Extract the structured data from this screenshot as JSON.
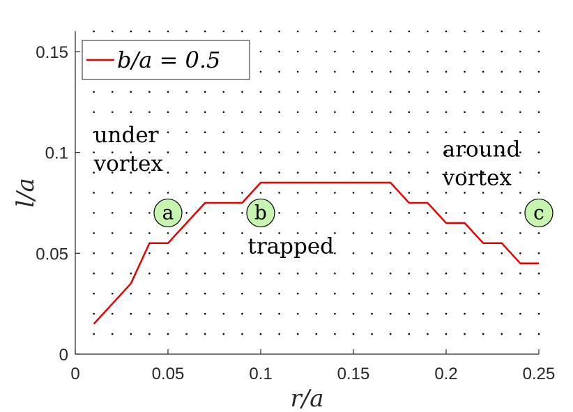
{
  "chart_data": {
    "type": "line",
    "xlabel": "r/a",
    "ylabel": "l/a",
    "xlim": [
      0,
      0.25
    ],
    "ylim": [
      0,
      0.16
    ],
    "xticks": [
      0,
      0.05,
      0.1,
      0.15,
      0.2,
      0.25
    ],
    "xtick_labels": [
      "0",
      "0.05",
      "0.1",
      "0.15",
      "0.2",
      "0.25"
    ],
    "yticks": [
      0,
      0.05,
      0.1,
      0.15
    ],
    "ytick_labels": [
      "0",
      "0.05",
      "0.1",
      "0.15"
    ],
    "grid": false,
    "legend_position": "top-left",
    "series": [
      {
        "name": "b/a = 0.5",
        "color": "#e60000",
        "x": [
          0.01,
          0.02,
          0.03,
          0.04,
          0.05,
          0.06,
          0.07,
          0.08,
          0.09,
          0.1,
          0.11,
          0.12,
          0.13,
          0.14,
          0.15,
          0.16,
          0.17,
          0.18,
          0.19,
          0.2,
          0.21,
          0.22,
          0.23,
          0.24,
          0.25
        ],
        "y": [
          0.015,
          0.025,
          0.035,
          0.055,
          0.055,
          0.065,
          0.075,
          0.075,
          0.075,
          0.085,
          0.085,
          0.085,
          0.085,
          0.085,
          0.085,
          0.085,
          0.085,
          0.075,
          0.075,
          0.065,
          0.065,
          0.055,
          0.055,
          0.045,
          0.045
        ]
      }
    ],
    "dot_grid": {
      "x_start": 0.01,
      "x_end": 0.25,
      "x_step": 0.01,
      "y_start": 0.01,
      "y_end": 0.16,
      "y_step": 0.01,
      "color": "#000000"
    },
    "annotations": {
      "regions": [
        {
          "id": "under-vortex",
          "lines": [
            "under",
            "vortex"
          ],
          "x": 0.01,
          "y": 0.105
        },
        {
          "id": "trapped",
          "lines": [
            "trapped"
          ],
          "x": 0.093,
          "y": 0.05
        },
        {
          "id": "around-vortex",
          "lines": [
            "around",
            "vortex"
          ],
          "x": 0.198,
          "y": 0.098
        }
      ],
      "markers": [
        {
          "label": "a",
          "x": 0.05,
          "y": 0.07,
          "fill": "#c6f5b0"
        },
        {
          "label": "b",
          "x": 0.1,
          "y": 0.07,
          "fill": "#c6f5b0"
        },
        {
          "label": "c",
          "x": 0.25,
          "y": 0.07,
          "fill": "#c6f5b0"
        }
      ]
    }
  }
}
